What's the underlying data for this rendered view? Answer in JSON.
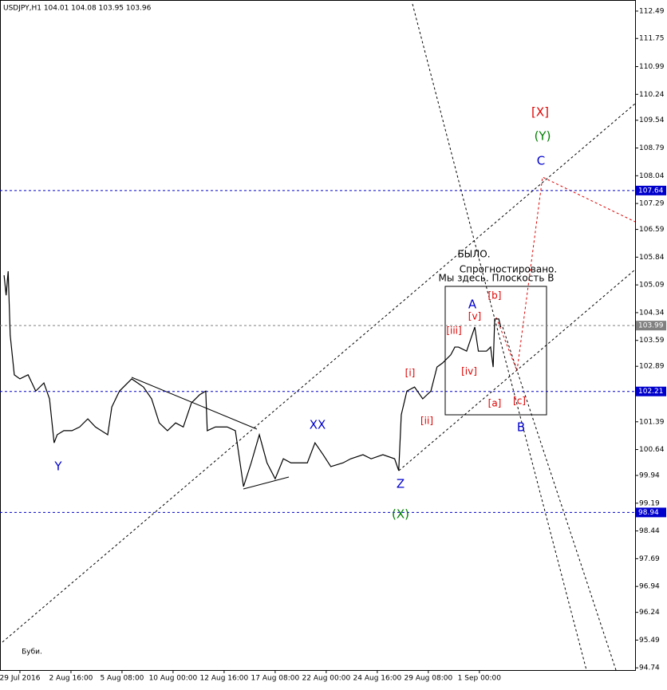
{
  "chart_data": {
    "type": "line",
    "title": "USDJPY,H1  104.01 104.08 103.95 103.96",
    "xlim": [
      -0.39,
      12.05
    ],
    "xticks": [
      {
        "value": 0,
        "label": "29 Jul 2016"
      },
      {
        "value": 1,
        "label": "2 Aug 16:00"
      },
      {
        "value": 2,
        "label": "5 Aug 08:00"
      },
      {
        "value": 3,
        "label": "10 Aug 00:00"
      },
      {
        "value": 4,
        "label": "12 Aug 16:00"
      },
      {
        "value": 5,
        "label": "17 Aug 08:00"
      },
      {
        "value": 6,
        "label": "22 Aug 00:00"
      },
      {
        "value": 7,
        "label": "24 Aug 16:00"
      },
      {
        "value": 8,
        "label": "29 Aug 08:00"
      },
      {
        "value": 9,
        "label": "1 Sep 00:00"
      }
    ],
    "ylim": [
      94.68,
      112.79
    ],
    "yticks": [
      112.49,
      111.75,
      110.99,
      110.24,
      109.54,
      108.79,
      108.04,
      107.29,
      106.59,
      105.84,
      105.09,
      104.34,
      103.59,
      102.89,
      102.14,
      101.39,
      100.64,
      99.94,
      99.19,
      98.44,
      97.69,
      96.94,
      96.24,
      95.49,
      94.74
    ],
    "x": [
      -0.31,
      -0.27,
      -0.23,
      -0.19,
      -0.11,
      0,
      0.16,
      0.31,
      0.47,
      0.58,
      0.67,
      0.73,
      0.86,
      1.02,
      1.17,
      1.33,
      1.48,
      1.72,
      1.8,
      1.95,
      2.19,
      2.42,
      2.58,
      2.73,
      2.89,
      3.05,
      3.2,
      3.36,
      3.52,
      3.64,
      3.67,
      3.83,
      4.06,
      4.22,
      4.38,
      4.53,
      4.69,
      4.84,
      5,
      5.16,
      5.31,
      5.47,
      5.63,
      5.78,
      5.94,
      6.09,
      6.33,
      6.48,
      6.72,
      6.88,
      7.11,
      7.34,
      7.42,
      7.47,
      7.58,
      7.73,
      7.89,
      8.05,
      8.17,
      8.28,
      8.44,
      8.52,
      8.59,
      8.75,
      8.91,
      8.98,
      9.14,
      9.22,
      9.27,
      9.3,
      9.38,
      9.42
    ],
    "series": [
      {
        "name": "USDJPY",
        "color": "#000000",
        "values": [
          105.35,
          104.81,
          105.46,
          103.73,
          102.66,
          102.55,
          102.66,
          102.22,
          102.44,
          102.01,
          100.82,
          101.04,
          101.15,
          101.15,
          101.25,
          101.47,
          101.25,
          101.04,
          101.79,
          102.22,
          102.55,
          102.33,
          102.01,
          101.36,
          101.15,
          101.36,
          101.25,
          101.9,
          102.12,
          102.22,
          101.15,
          101.25,
          101.25,
          101.15,
          99.64,
          100.28,
          101.04,
          100.28,
          99.85,
          100.39,
          100.28,
          100.28,
          100.28,
          100.82,
          100.5,
          100.18,
          100.28,
          100.39,
          100.5,
          100.39,
          100.5,
          100.39,
          100.07,
          101.58,
          102.22,
          102.33,
          102.01,
          102.22,
          102.87,
          102.98,
          103.2,
          103.41,
          103.41,
          103.3,
          103.95,
          103.3,
          103.3,
          103.41,
          102.87,
          104.17,
          104.17,
          103.95
        ]
      }
    ],
    "levels": [
      {
        "value": 107.64,
        "label": "107.64",
        "color": "#0000cc"
      },
      {
        "value": 103.99,
        "label": "103.99",
        "color": "#808080"
      },
      {
        "value": 102.21,
        "label": "102.21",
        "color": "#0000cc"
      },
      {
        "value": 98.94,
        "label": "98.94",
        "color": "#0000cc"
      }
    ],
    "annotations": [
      {
        "text": "[X]",
        "color": "#e00000"
      },
      {
        "text": "(Y)",
        "color": "#008000"
      },
      {
        "text": "C",
        "color": "#0000cc"
      },
      {
        "text": "БЫЛО.",
        "color": "#000000"
      },
      {
        "text": "Спрогностировано.",
        "color": "#000000"
      },
      {
        "text": "Мы здесь. Плоскость B",
        "color": "#000000"
      },
      {
        "text": "A",
        "color": "#0000cc"
      },
      {
        "text": "[b]",
        "color": "#e00000"
      },
      {
        "text": "[v]",
        "color": "#e00000"
      },
      {
        "text": "[iii]",
        "color": "#e00000"
      },
      {
        "text": "[i]",
        "color": "#e00000"
      },
      {
        "text": "[iv]",
        "color": "#e00000"
      },
      {
        "text": "[ii]",
        "color": "#e00000"
      },
      {
        "text": "[a]",
        "color": "#e00000"
      },
      {
        "text": "[c]",
        "color": "#e00000"
      },
      {
        "text": "B",
        "color": "#0000cc"
      },
      {
        "text": "XX",
        "color": "#0000cc"
      },
      {
        "text": "Y",
        "color": "#0000cc"
      },
      {
        "text": "Z",
        "color": "#0000cc"
      },
      {
        "text": "(X)",
        "color": "#008000"
      },
      {
        "text": "Буби.",
        "color": "#000000"
      }
    ]
  }
}
